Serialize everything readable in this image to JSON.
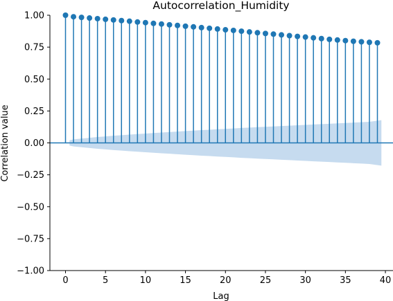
{
  "chart_data": {
    "type": "scatter",
    "title": "Autocorrelation_Humidity",
    "xlabel": "Lag",
    "ylabel": "Correlation value",
    "xlim": [
      -1.95,
      40.95
    ],
    "ylim": [
      -1.0,
      1.0
    ],
    "xticks": [
      0,
      5,
      10,
      15,
      20,
      25,
      30,
      35,
      40
    ],
    "xtick_labels": [
      "0",
      "5",
      "10",
      "15",
      "20",
      "25",
      "30",
      "35",
      "40"
    ],
    "yticks": [
      -1.0,
      -0.75,
      -0.5,
      -0.25,
      0.0,
      0.25,
      0.5,
      0.75,
      1.0
    ],
    "ytick_labels": [
      "−1.00",
      "−0.75",
      "−0.50",
      "−0.25",
      "0.00",
      "0.25",
      "0.50",
      "0.75",
      "1.00"
    ],
    "grid": false,
    "lags": [
      0,
      1,
      2,
      3,
      4,
      5,
      6,
      7,
      8,
      9,
      10,
      11,
      12,
      13,
      14,
      15,
      16,
      17,
      18,
      19,
      20,
      21,
      22,
      23,
      24,
      25,
      26,
      27,
      28,
      29,
      30,
      31,
      32,
      33,
      34,
      35,
      36,
      37,
      38,
      39
    ],
    "values": [
      1.0,
      0.988,
      0.983,
      0.978,
      0.973,
      0.968,
      0.963,
      0.958,
      0.953,
      0.947,
      0.942,
      0.936,
      0.931,
      0.925,
      0.92,
      0.914,
      0.909,
      0.903,
      0.898,
      0.892,
      0.886,
      0.881,
      0.875,
      0.869,
      0.863,
      0.857,
      0.852,
      0.846,
      0.84,
      0.834,
      0.829,
      0.823,
      0.817,
      0.811,
      0.806,
      0.801,
      0.796,
      0.792,
      0.788,
      0.784
    ],
    "confidence_band": {
      "lags": [
        0.5,
        1,
        2,
        3,
        4,
        5,
        6,
        7,
        8,
        9,
        10,
        11,
        12,
        13,
        14,
        15,
        16,
        17,
        18,
        19,
        20,
        21,
        22,
        23,
        24,
        25,
        26,
        27,
        28,
        29,
        30,
        31,
        32,
        33,
        34,
        35,
        36,
        37,
        38,
        39.5
      ],
      "upper": [
        0.02,
        0.028,
        0.034,
        0.04,
        0.046,
        0.051,
        0.056,
        0.06,
        0.065,
        0.069,
        0.073,
        0.077,
        0.081,
        0.085,
        0.089,
        0.093,
        0.096,
        0.1,
        0.103,
        0.107,
        0.11,
        0.113,
        0.117,
        0.12,
        0.123,
        0.126,
        0.129,
        0.132,
        0.135,
        0.138,
        0.141,
        0.144,
        0.147,
        0.15,
        0.153,
        0.156,
        0.159,
        0.162,
        0.165,
        0.178
      ]
    },
    "colors": {
      "stem": "#1f77b4",
      "marker": "#1f77b4",
      "band": "#c6dbef",
      "zero_line": "#1f77b4"
    }
  }
}
